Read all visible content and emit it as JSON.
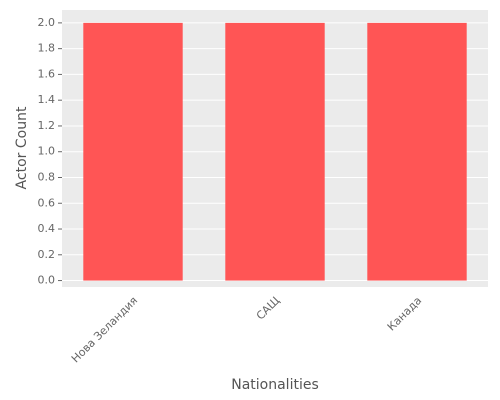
{
  "chart_data": {
    "type": "bar",
    "categories": [
      "Нова Зеландия",
      "САЩ",
      "Канада"
    ],
    "values": [
      2,
      2,
      2
    ],
    "color": "#ff5555",
    "xlabel": "Nationalities",
    "ylabel": "Actor Count",
    "ylim": [
      -0.05,
      2.1
    ],
    "yticks": [
      {
        "value": 0,
        "label": "0.0"
      },
      {
        "value": 0.2,
        "label": "0.2"
      },
      {
        "value": 0.4,
        "label": "0.4"
      },
      {
        "value": 0.6,
        "label": "0.6"
      },
      {
        "value": 0.8,
        "label": "0.8"
      },
      {
        "value": 1.0,
        "label": "1.0"
      },
      {
        "value": 1.2,
        "label": "1.2"
      },
      {
        "value": 1.4,
        "label": "1.4"
      },
      {
        "value": 1.6,
        "label": "1.6"
      },
      {
        "value": 1.8,
        "label": "1.8"
      },
      {
        "value": 2.0,
        "label": "2.0"
      }
    ],
    "grid": true
  }
}
